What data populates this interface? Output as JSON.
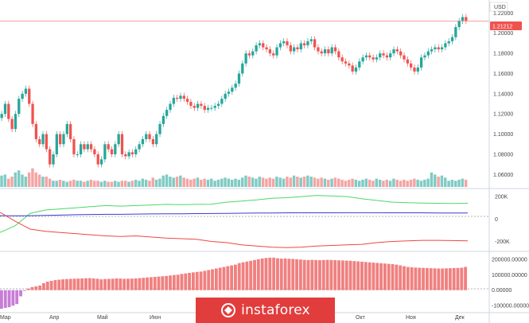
{
  "currency": "USD",
  "last_price": "1.21212",
  "colors": {
    "up": "#26a69a",
    "down": "#ef5350",
    "vol_up": "#80cbc4",
    "vol_down": "#f4a5a3",
    "green_line": "#4cd964",
    "blue_line": "#3b3bd6",
    "red_line": "#f04646",
    "hist_pos": "#f08080",
    "hist_neg": "#c77dd6",
    "price_line": "#f08080"
  },
  "price_axis": {
    "ticks": [
      "1.22000",
      "1.20000",
      "1.18000",
      "1.16000",
      "1.14000",
      "1.12000",
      "1.10000",
      "1.08000",
      "1.06000"
    ]
  },
  "indicator1_axis": {
    "ticks": [
      "200K",
      "0",
      "-200K"
    ]
  },
  "indicator2_axis": {
    "ticks": [
      "200000.00000",
      "100000.00000",
      "0.00000",
      "-100000.00000"
    ]
  },
  "time_axis": {
    "ticks": [
      "Мар",
      "Апр",
      "Май",
      "Июн",
      "Окт",
      "Ноя",
      "Дек"
    ]
  },
  "brand": {
    "text": "instaforex"
  },
  "chart_data": {
    "type": "candlestick",
    "instrument_quote": "USD",
    "last_price": 1.21212,
    "ylim": [
      1.05,
      1.225
    ],
    "closes": [
      1.12,
      1.13,
      1.115,
      1.105,
      1.12,
      1.135,
      1.14,
      1.145,
      1.13,
      1.11,
      1.095,
      1.09,
      1.1,
      1.085,
      1.07,
      1.08,
      1.1,
      1.09,
      1.1,
      1.11,
      1.095,
      1.08,
      1.08,
      1.09,
      1.085,
      1.09,
      1.085,
      1.08,
      1.07,
      1.075,
      1.09,
      1.085,
      1.08,
      1.09,
      1.1,
      1.08,
      1.078,
      1.082,
      1.08,
      1.085,
      1.09,
      1.095,
      1.1,
      1.095,
      1.09,
      1.1,
      1.11,
      1.118,
      1.124,
      1.13,
      1.136,
      1.135,
      1.138,
      1.135,
      1.132,
      1.128,
      1.126,
      1.13,
      1.128,
      1.124,
      1.126,
      1.126,
      1.128,
      1.13,
      1.135,
      1.14,
      1.142,
      1.146,
      1.15,
      1.16,
      1.17,
      1.18,
      1.178,
      1.182,
      1.188,
      1.19,
      1.186,
      1.184,
      1.18,
      1.178,
      1.186,
      1.19,
      1.192,
      1.188,
      1.182,
      1.186,
      1.184,
      1.19,
      1.188,
      1.192,
      1.194,
      1.186,
      1.182,
      1.18,
      1.184,
      1.18,
      1.186,
      1.182,
      1.176,
      1.172,
      1.17,
      1.168,
      1.162,
      1.166,
      1.172,
      1.176,
      1.178,
      1.176,
      1.174,
      1.176,
      1.18,
      1.178,
      1.176,
      1.18,
      1.184,
      1.182,
      1.178,
      1.174,
      1.17,
      1.166,
      1.162,
      1.166,
      1.176,
      1.178,
      1.182,
      1.184,
      1.186,
      1.184,
      1.186,
      1.19,
      1.192,
      1.196,
      1.206,
      1.212,
      1.216,
      1.212
    ],
    "volume_relative": [
      0.55,
      0.6,
      0.4,
      0.5,
      0.7,
      0.8,
      0.6,
      0.5,
      0.7,
      0.9,
      0.7,
      0.6,
      0.5,
      0.5,
      0.4,
      0.3,
      0.3,
      0.35,
      0.3,
      0.25,
      0.3,
      0.35,
      0.3,
      0.3,
      0.25,
      0.3,
      0.35,
      0.3,
      0.3,
      0.25,
      0.3,
      0.25,
      0.25,
      0.3,
      0.25,
      0.3,
      0.3,
      0.25,
      0.3,
      0.35,
      0.3,
      0.4,
      0.35,
      0.3,
      0.45,
      0.35,
      0.4,
      0.55,
      0.6,
      0.5,
      0.45,
      0.5,
      0.55,
      0.45,
      0.4,
      0.35,
      0.4,
      0.45,
      0.35,
      0.4,
      0.35,
      0.4,
      0.3,
      0.35,
      0.4,
      0.45,
      0.4,
      0.35,
      0.4,
      0.35,
      0.45,
      0.55,
      0.5,
      0.45,
      0.4,
      0.5,
      0.45,
      0.4,
      0.45,
      0.4,
      0.5,
      0.45,
      0.4,
      0.5,
      0.45,
      0.55,
      0.5,
      0.45,
      0.5,
      0.55,
      0.5,
      0.45,
      0.4,
      0.45,
      0.4,
      0.35,
      0.4,
      0.45,
      0.4,
      0.35,
      0.3,
      0.35,
      0.4,
      0.35,
      0.3,
      0.35,
      0.4,
      0.35,
      0.3,
      0.4,
      0.35,
      0.3,
      0.35,
      0.3,
      0.4,
      0.35,
      0.3,
      0.35,
      0.3,
      0.35,
      0.4,
      0.35,
      0.3,
      0.35,
      0.4,
      0.7,
      0.6,
      0.5,
      0.55,
      0.45,
      0.3,
      0.35,
      0.3,
      0.35,
      0.4,
      0.35
    ],
    "indicator1": {
      "ylim": [
        -260000,
        250000
      ],
      "green": [
        -120000,
        -60000,
        50000,
        80000,
        90000,
        100000,
        110000,
        120000,
        115000,
        120000,
        125000,
        130000,
        128000,
        130000,
        132000,
        150000,
        160000,
        170000,
        185000,
        190000,
        200000,
        210000,
        205000,
        200000,
        180000,
        165000,
        150000,
        145000,
        142000,
        140000,
        138000,
        140000
      ],
      "blue": [
        30000,
        28000,
        30000,
        32000,
        35000,
        38000,
        40000,
        42000,
        42000,
        44000,
        45000,
        46000,
        47000,
        48000,
        49000,
        50000,
        52000,
        53000,
        54000,
        55000,
        55000,
        55000,
        55000,
        56000,
        56000,
        56000,
        55000,
        55000,
        55000,
        54000,
        54000,
        54000
      ],
      "red": [
        60000,
        -20000,
        -90000,
        -110000,
        -120000,
        -130000,
        -140000,
        -150000,
        -155000,
        -150000,
        -160000,
        -170000,
        -175000,
        -180000,
        -200000,
        -210000,
        -230000,
        -240000,
        -250000,
        -255000,
        -250000,
        -240000,
        -235000,
        -230000,
        -225000,
        -210000,
        -200000,
        -195000,
        -190000,
        -190000,
        -192000,
        -195000
      ]
    },
    "indicator2": {
      "ylim": [
        -130000,
        230000
      ],
      "values": [
        -120000,
        -115000,
        -110000,
        -100000,
        -90000,
        -40000,
        -5000,
        10000,
        20000,
        25000,
        30000,
        45000,
        55000,
        60000,
        65000,
        68000,
        70000,
        72000,
        73000,
        74000,
        75000,
        76000,
        77000,
        78000,
        76000,
        74000,
        70000,
        72000,
        73000,
        74000,
        76000,
        75000,
        73000,
        74000,
        75000,
        76000,
        78000,
        80000,
        82000,
        84000,
        86000,
        88000,
        90000,
        92000,
        95000,
        98000,
        100000,
        105000,
        108000,
        112000,
        115000,
        118000,
        120000,
        125000,
        130000,
        135000,
        140000,
        145000,
        150000,
        155000,
        160000,
        165000,
        175000,
        180000,
        185000,
        190000,
        195000,
        200000,
        205000,
        208000,
        210000,
        210000,
        206000,
        204000,
        205000,
        203000,
        202000,
        200000,
        198000,
        196000,
        195000,
        196000,
        195000,
        194000,
        195000,
        196000,
        195000,
        194000,
        193000,
        192000,
        191000,
        190000,
        188000,
        186000,
        184000,
        182000,
        180000,
        178000,
        176000,
        174000,
        172000,
        170000,
        168000,
        165000,
        160000,
        155000,
        150000,
        148000,
        146000,
        145000,
        144000,
        143000,
        142000,
        141000,
        140000,
        140000,
        141000,
        142000,
        143000,
        144000,
        145000,
        150000
      ]
    }
  }
}
